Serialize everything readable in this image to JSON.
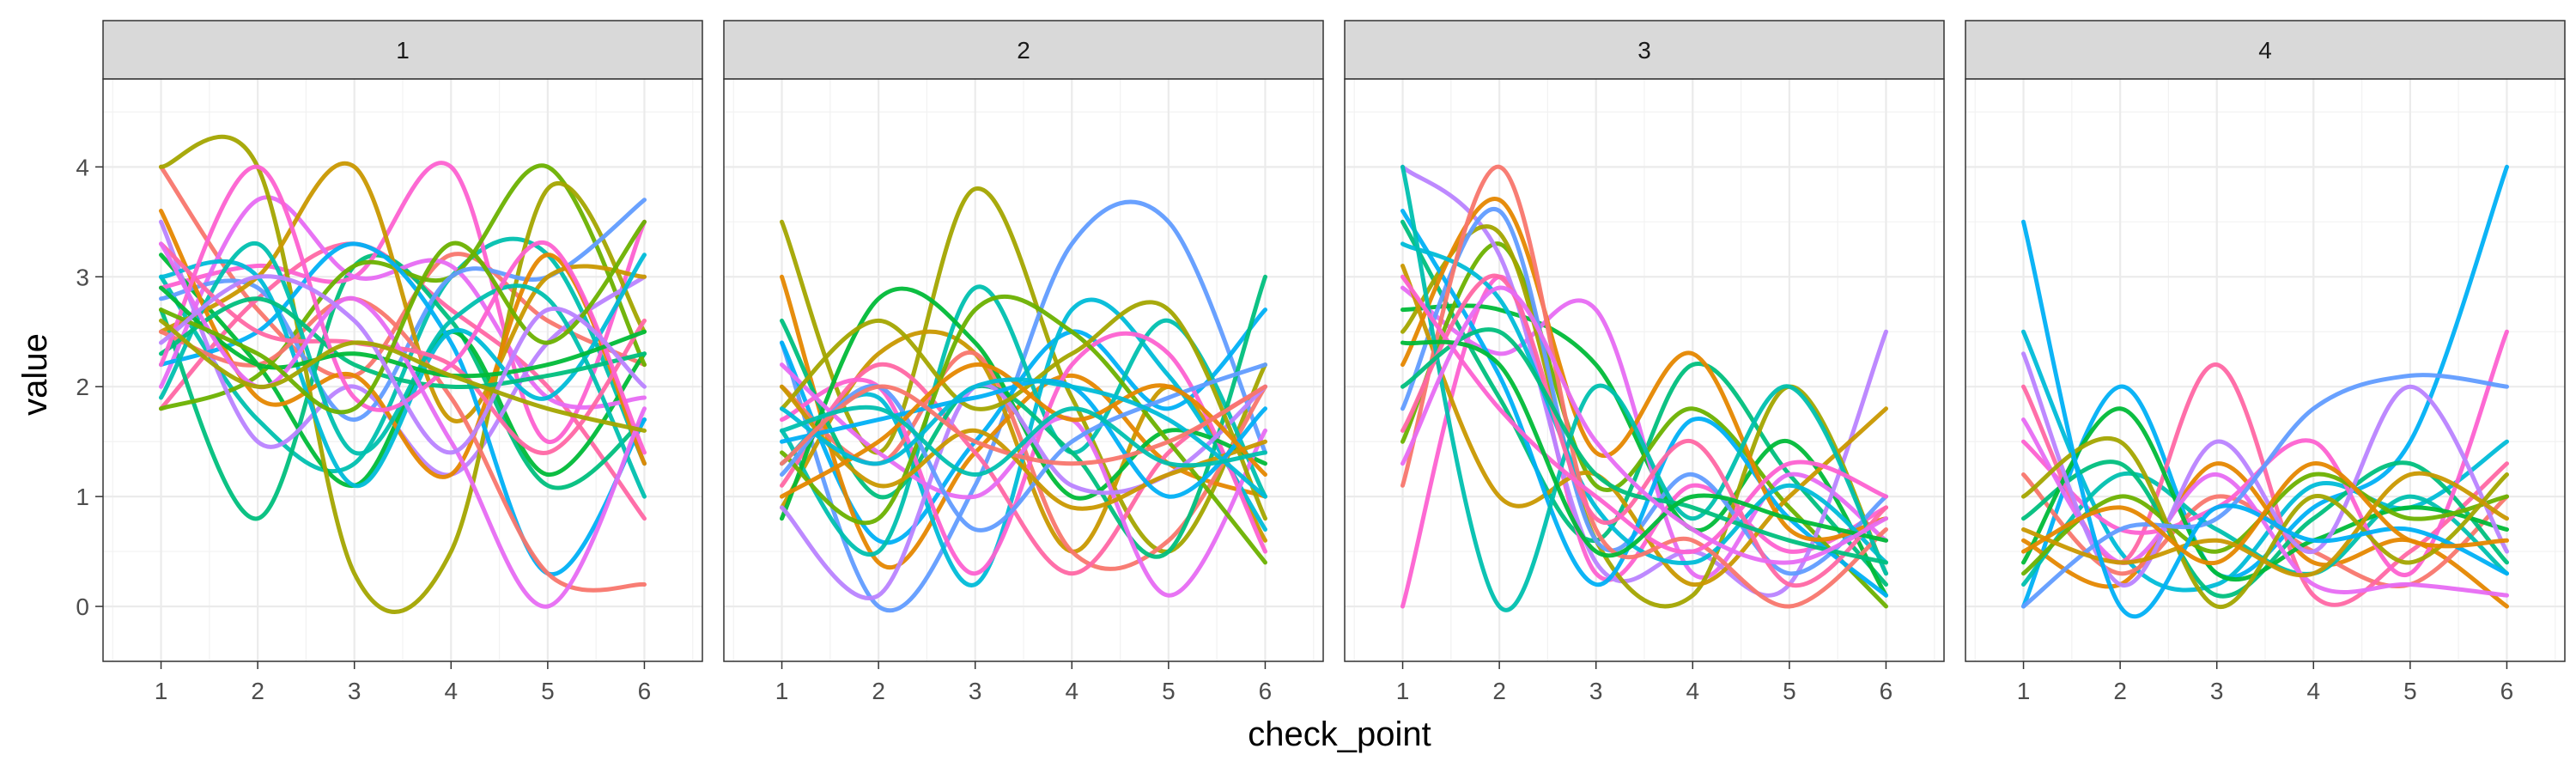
{
  "chart_data": {
    "type": "line",
    "xlabel": "check_point",
    "ylabel": "value",
    "x_ticks": [
      "1",
      "2",
      "3",
      "4",
      "5",
      "6"
    ],
    "y_ticks": [
      "0",
      "1",
      "2",
      "3",
      "4"
    ],
    "xlim": [
      0.4,
      6.6
    ],
    "ylim": [
      -0.5,
      4.8
    ],
    "grid": true,
    "legend": "none",
    "palette": [
      "#F8766D",
      "#E58700",
      "#C99800",
      "#A3A500",
      "#6BB100",
      "#00BA38",
      "#00BF7D",
      "#00C0AF",
      "#00BCD8",
      "#00B0F6",
      "#619CFF",
      "#B983FF",
      "#E76BF3",
      "#FD61D1",
      "#FF67A4"
    ],
    "panels": [
      {
        "label": "1",
        "series": [
          [
            4.0,
            2.7,
            2.1,
            3.2,
            2.6,
            2.2
          ],
          [
            3.0,
            1.7,
            1.3,
            3.0,
            3.2,
            1.3
          ],
          [
            1.8,
            2.8,
            3.3,
            2.7,
            2.0,
            0.8
          ],
          [
            2.7,
            0.8,
            3.1,
            2.6,
            1.1,
            1.7
          ],
          [
            2.9,
            3.1,
            3.0,
            4.0,
            1.5,
            3.5
          ],
          [
            3.2,
            2.2,
            1.1,
            2.5,
            1.2,
            2.3
          ],
          [
            2.0,
            3.7,
            3.0,
            3.1,
            1.9,
            1.9
          ],
          [
            1.8,
            2.1,
            3.1,
            3.0,
            4.0,
            2.2
          ],
          [
            3.5,
            1.5,
            2.0,
            1.2,
            2.4,
            3.0
          ],
          [
            4.0,
            4.0,
            0.3,
            0.5,
            3.8,
            2.5
          ],
          [
            2.8,
            2.9,
            1.7,
            3.0,
            3.0,
            3.7
          ],
          [
            2.5,
            3.0,
            4.0,
            1.7,
            3.0,
            3.0
          ],
          [
            2.2,
            2.5,
            3.3,
            2.4,
            0.3,
            1.7
          ],
          [
            3.6,
            1.9,
            2.1,
            1.2,
            3.2,
            1.3
          ],
          [
            3.0,
            3.0,
            1.1,
            2.5,
            1.9,
            3.2
          ],
          [
            2.5,
            2.2,
            2.8,
            1.9,
            0.3,
            0.2
          ],
          [
            1.9,
            3.3,
            1.4,
            2.6,
            2.8,
            1.0
          ],
          [
            3.3,
            2.5,
            2.4,
            2.2,
            1.4,
            2.6
          ],
          [
            2.3,
            2.8,
            2.2,
            2.0,
            2.1,
            2.3
          ],
          [
            2.2,
            4.0,
            1.9,
            2.2,
            3.3,
            1.4
          ],
          [
            2.9,
            2.2,
            2.3,
            2.1,
            2.2,
            2.5
          ],
          [
            3.3,
            2.0,
            2.8,
            1.5,
            0.0,
            1.8
          ],
          [
            2.7,
            2.3,
            1.8,
            3.3,
            2.4,
            3.5
          ],
          [
            2.4,
            3.0,
            2.6,
            1.4,
            2.7,
            2.0
          ],
          [
            2.6,
            2.0,
            2.4,
            2.1,
            1.8,
            1.6
          ]
        ]
      },
      {
        "label": "2",
        "series": [
          [
            3.5,
            1.4,
            3.8,
            1.9,
            0.5,
            2.2
          ],
          [
            2.4,
            0.0,
            1.1,
            3.3,
            3.5,
            1.4
          ],
          [
            0.9,
            2.3,
            2.3,
            0.5,
            2.0,
            0.6
          ],
          [
            2.4,
            0.6,
            1.5,
            2.5,
            1.8,
            2.7
          ],
          [
            3.0,
            0.4,
            1.4,
            2.1,
            1.3,
            1.0
          ],
          [
            1.3,
            1.9,
            0.2,
            2.7,
            2.1,
            0.7
          ],
          [
            2.0,
            1.3,
            2.3,
            0.5,
            0.6,
            2.0
          ],
          [
            1.6,
            0.5,
            2.9,
            1.4,
            2.6,
            1.0
          ],
          [
            1.1,
            2.2,
            1.4,
            0.3,
            1.4,
            2.0
          ],
          [
            2.6,
            1.0,
            2.0,
            1.4,
            0.5,
            3.0
          ],
          [
            1.7,
            2.0,
            0.3,
            2.2,
            2.3,
            0.5
          ],
          [
            0.8,
            2.8,
            2.4,
            1.0,
            1.6,
            1.3
          ],
          [
            2.2,
            1.4,
            1.0,
            1.7,
            0.1,
            1.6
          ],
          [
            1.4,
            0.8,
            2.7,
            2.5,
            1.5,
            0.4
          ],
          [
            0.9,
            0.1,
            2.0,
            1.1,
            1.2,
            2.0
          ],
          [
            1.8,
            2.6,
            1.8,
            2.3,
            2.7,
            0.8
          ],
          [
            1.2,
            2.0,
            0.7,
            1.5,
            1.9,
            2.2
          ],
          [
            2.0,
            1.1,
            1.6,
            0.9,
            1.2,
            1.5
          ],
          [
            1.5,
            1.7,
            1.9,
            2.0,
            1.0,
            1.8
          ],
          [
            1.0,
            1.5,
            2.2,
            1.7,
            2.0,
            1.2
          ],
          [
            1.8,
            1.3,
            2.0,
            2.0,
            1.7,
            1.0
          ],
          [
            1.3,
            2.0,
            1.5,
            1.3,
            1.5,
            2.0
          ],
          [
            1.6,
            1.8,
            1.2,
            1.8,
            1.3,
            1.4
          ]
        ]
      },
      {
        "label": "3",
        "series": [
          [
            3.5,
            1.9,
            0.6,
            2.2,
            1.2,
            0.2
          ],
          [
            0.0,
            3.0,
            0.3,
            1.1,
            0.5,
            0.9
          ],
          [
            2.7,
            2.7,
            2.2,
            0.7,
            1.5,
            0.1
          ],
          [
            2.9,
            2.3,
            2.7,
            0.3,
            1.2,
            0.6
          ],
          [
            1.5,
            3.3,
            1.1,
            1.8,
            0.9,
            0.0
          ],
          [
            4.0,
            3.2,
            0.4,
            0.5,
            0.2,
            2.5
          ],
          [
            2.5,
            3.4,
            0.6,
            0.1,
            2.0,
            0.3
          ],
          [
            1.8,
            3.6,
            0.6,
            1.2,
            0.3,
            1.0
          ],
          [
            3.1,
            1.0,
            1.2,
            0.2,
            1.0,
            1.8
          ],
          [
            3.6,
            2.1,
            0.2,
            1.7,
            0.8,
            0.1
          ],
          [
            2.2,
            3.7,
            1.4,
            2.3,
            0.7,
            0.8
          ],
          [
            3.3,
            2.8,
            0.9,
            0.4,
            1.1,
            0.4
          ],
          [
            1.1,
            4.0,
            0.7,
            0.6,
            0.0,
            0.7
          ],
          [
            4.0,
            0.0,
            2.0,
            0.8,
            2.0,
            0.3
          ],
          [
            1.6,
            3.0,
            0.8,
            1.5,
            0.2,
            0.9
          ],
          [
            2.0,
            2.5,
            1.2,
            0.9,
            0.6,
            0.4
          ],
          [
            3.0,
            1.8,
            1.0,
            0.5,
            1.3,
            1.0
          ],
          [
            2.4,
            2.2,
            0.5,
            1.0,
            0.8,
            0.6
          ],
          [
            1.3,
            2.9,
            1.5,
            0.7,
            0.4,
            0.8
          ]
        ]
      },
      {
        "label": "4",
        "series": [
          [
            0.0,
            2.0,
            0.3,
            0.9,
            1.5,
            4.0
          ],
          [
            0.6,
            0.2,
            1.3,
            0.4,
            0.6,
            0.0
          ],
          [
            2.5,
            0.5,
            0.2,
            1.1,
            0.9,
            1.5
          ],
          [
            1.2,
            0.3,
            1.0,
            0.5,
            0.2,
            1.0
          ],
          [
            0.2,
            1.2,
            0.7,
            0.3,
            1.0,
            0.3
          ],
          [
            2.0,
            0.4,
            2.2,
            0.1,
            0.5,
            1.3
          ],
          [
            0.8,
            1.3,
            0.1,
            0.8,
            1.3,
            0.4
          ],
          [
            1.5,
            0.7,
            0.9,
            1.5,
            0.3,
            2.5
          ],
          [
            0.4,
            1.8,
            0.3,
            0.6,
            0.9,
            0.7
          ],
          [
            1.7,
            0.4,
            1.2,
            0.2,
            0.2,
            0.1
          ],
          [
            0.3,
            1.0,
            0.5,
            1.2,
            0.8,
            1.0
          ],
          [
            2.3,
            0.2,
            1.5,
            0.5,
            2.0,
            0.5
          ],
          [
            1.0,
            1.5,
            0.0,
            1.0,
            0.4,
            1.2
          ],
          [
            0.0,
            0.7,
            0.8,
            1.8,
            2.1,
            2.0
          ],
          [
            0.7,
            0.4,
            0.6,
            0.3,
            1.2,
            0.8
          ],
          [
            3.5,
            0.0,
            0.9,
            0.6,
            0.7,
            0.3
          ],
          [
            0.5,
            0.9,
            0.4,
            1.3,
            0.6,
            0.6
          ]
        ]
      }
    ]
  }
}
